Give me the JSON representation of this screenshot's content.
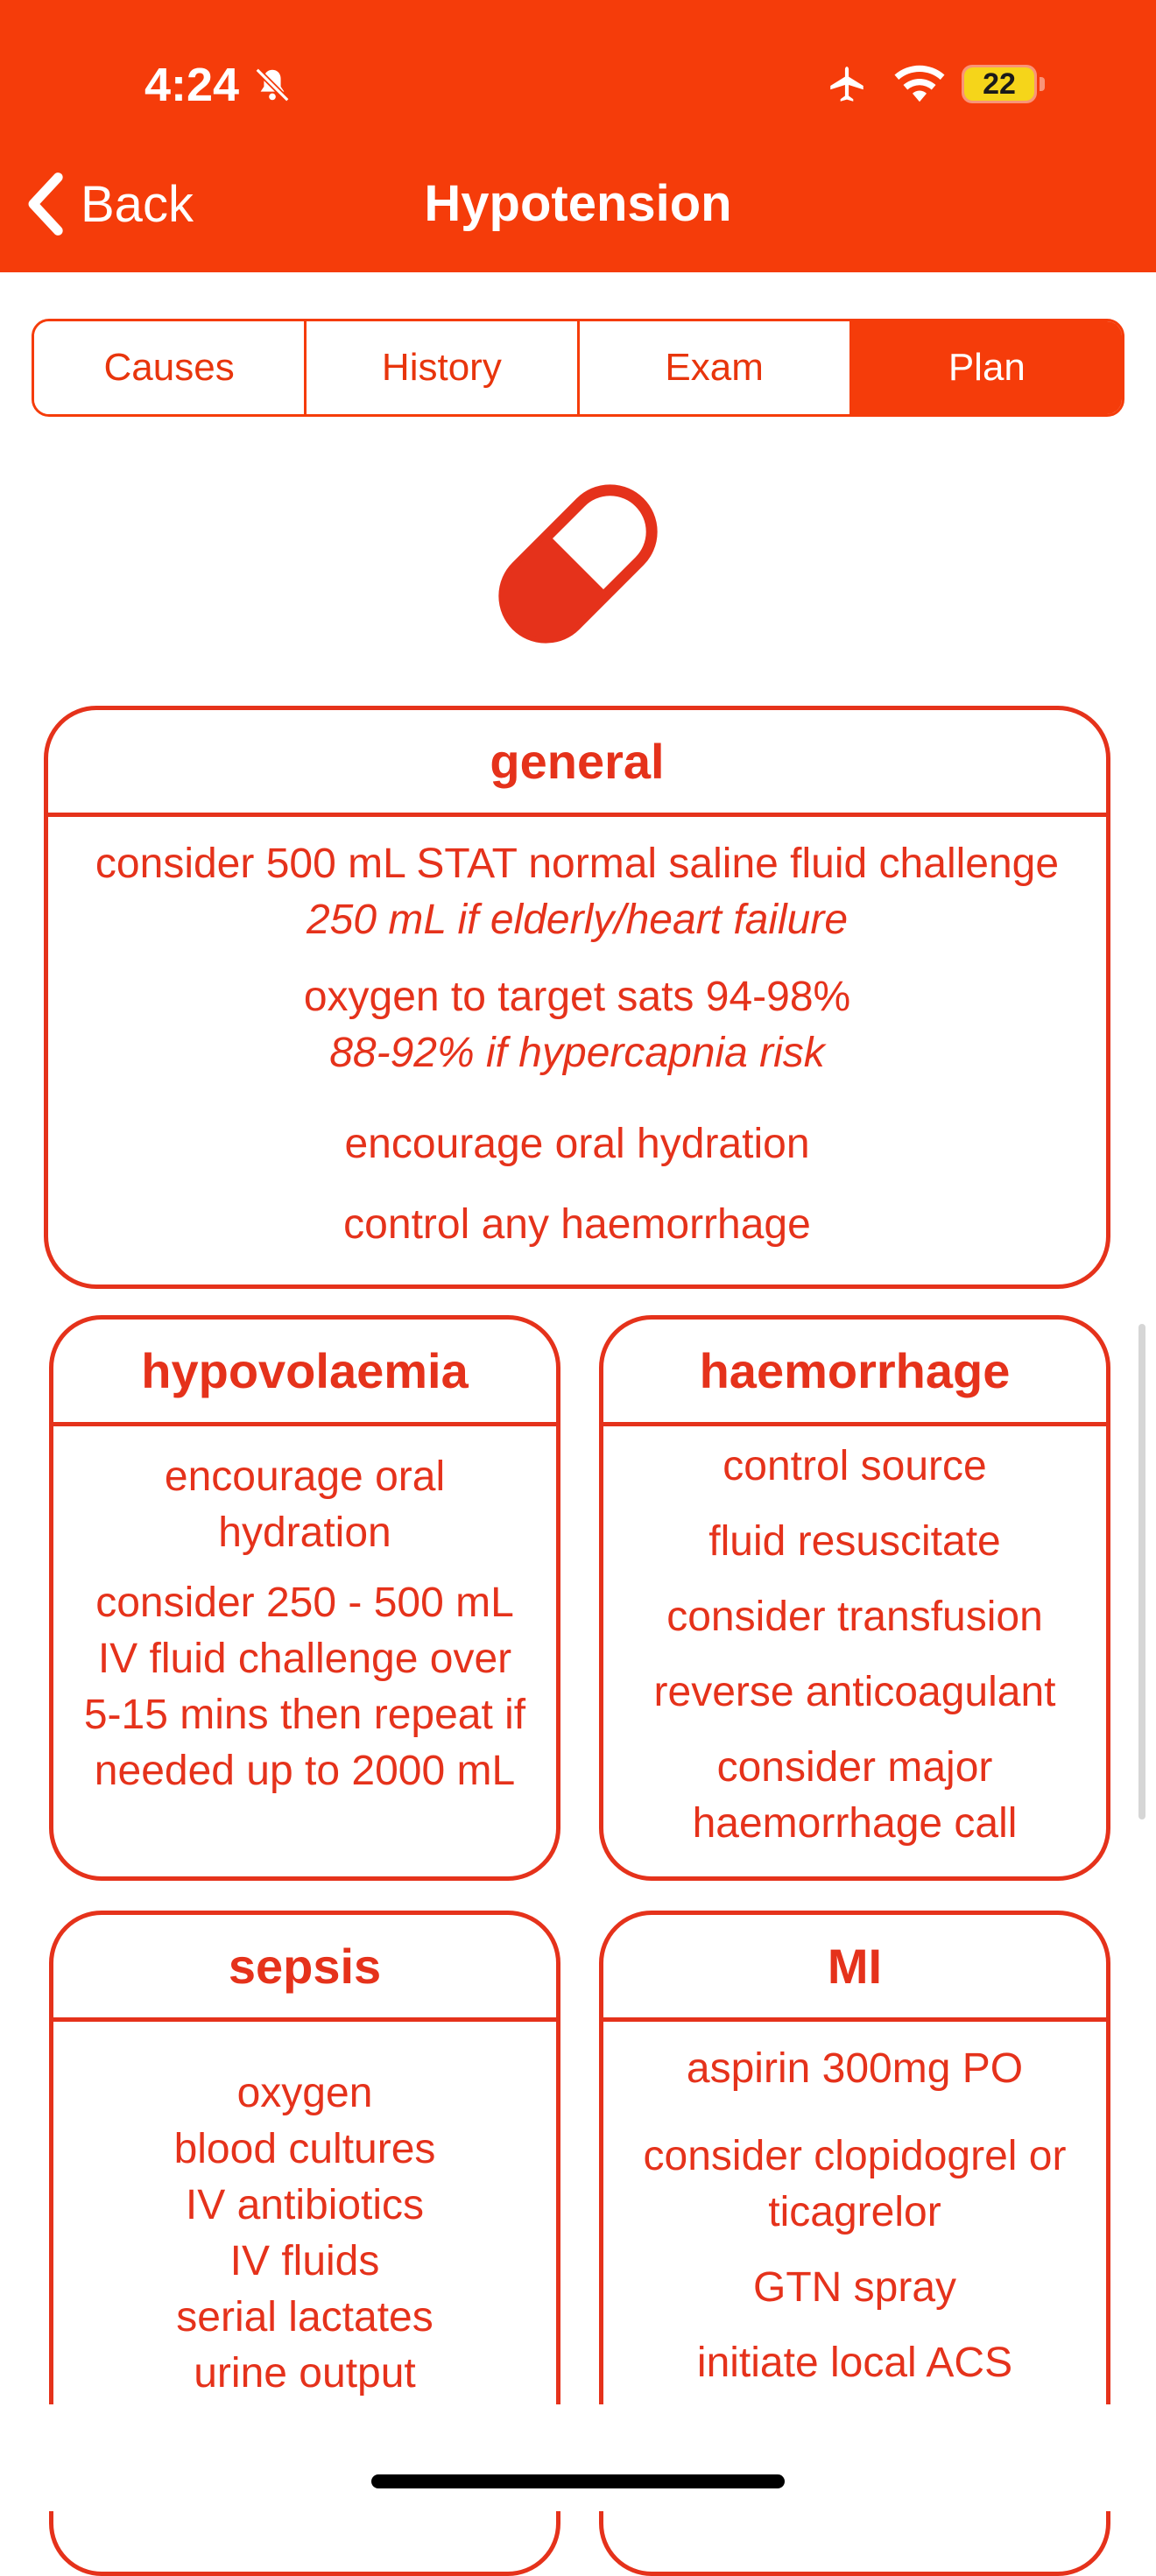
{
  "status_bar": {
    "time": "4:24",
    "battery": "22"
  },
  "nav": {
    "back_label": "Back",
    "title": "Hypotension"
  },
  "tabs": [
    {
      "label": "Causes",
      "active": false
    },
    {
      "label": "History",
      "active": false
    },
    {
      "label": "Exam",
      "active": false
    },
    {
      "label": "Plan",
      "active": true
    }
  ],
  "colors": {
    "accent": "#f53c0a",
    "card": "#e5321b"
  },
  "cards": {
    "general": {
      "title": "general",
      "items": [
        {
          "text": "consider 500 mL STAT normal saline fluid challenge",
          "note": "250 mL if elderly/heart failure"
        },
        {
          "text": "oxygen to target sats 94-98%",
          "note": "88-92% if hypercapnia risk"
        },
        {
          "text": "encourage oral hydration"
        },
        {
          "text": "control any haemorrhage"
        }
      ]
    },
    "hypovolaemia": {
      "title": "hypovolaemia",
      "items": [
        "encourage oral hydration",
        "consider 250 - 500 mL IV fluid challenge over 5-15 mins then repeat if needed up to 2000 mL"
      ]
    },
    "haemorrhage": {
      "title": "haemorrhage",
      "items": [
        "control source",
        "fluid resuscitate",
        "consider transfusion",
        "reverse anticoagulant",
        "consider major haemorrhage call"
      ]
    },
    "sepsis": {
      "title": "sepsis",
      "items": [
        "oxygen",
        "blood cultures",
        "IV antibiotics",
        "IV fluids",
        "serial lactates",
        "urine output"
      ]
    },
    "mi": {
      "title": "MI",
      "items": [
        "aspirin 300mg PO",
        "consider clopidogrel or ticagrelor",
        "GTN spray",
        "initiate local ACS"
      ]
    }
  }
}
